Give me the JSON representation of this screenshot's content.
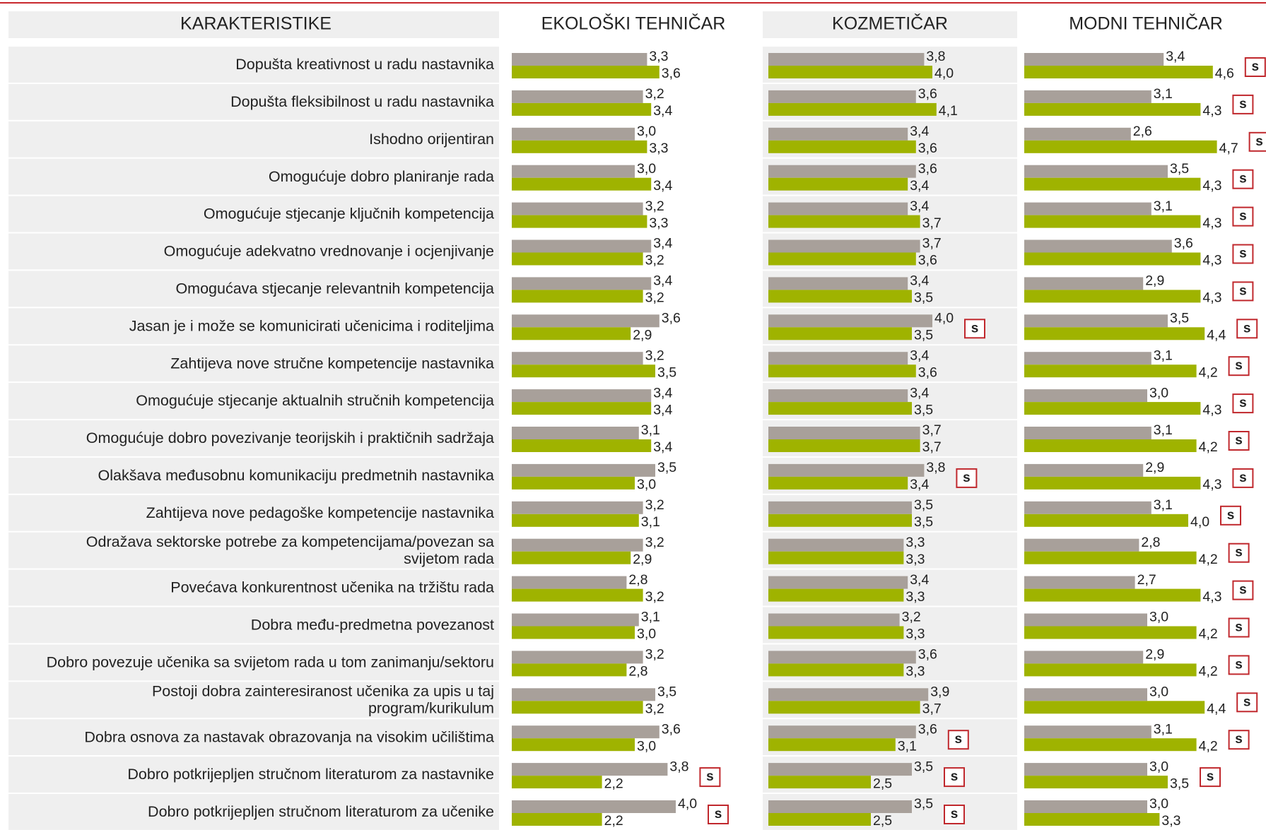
{
  "header": {
    "title": "KARAKTERISTIKE",
    "categories": [
      "Dopušta kreativnost u radu nastavnika",
      "Dopušta fleksibilnost u radu nastavnika",
      "Ishodno orijentiran",
      "Omogućuje dobro planiranje rada",
      "Omogućuje stjecanje ključnih kompetencija",
      "Omogućuje adekvatno vrednovanje i ocjenjivanje",
      "Omogućava stjecanje relevantnih kompetencija",
      "Jasan je i može se komunicirati učenicima i roditeljima",
      "Zahtijeva nove stručne kompetencije nastavnika",
      "Omogućuje stjecanje aktualnih stručnih kompetencija",
      "Omogućuje dobro povezivanje teorijskih i praktičnih sadržaja",
      "Olakšava međusobnu komunikaciju predmetnih nastavnika",
      "Zahtijeva nove pedagoške kompetencije nastavnika",
      [
        "Odražava sektorske potrebe za kompetencijama/povezan sa",
        "svijetom rada"
      ],
      "Povećava konkurentnost učenika na tržištu rada",
      "Dobra među-predmetna povezanost",
      "Dobro povezuje učenika sa svijetom rada u tom zanimanju/sektoru",
      [
        "Postoji dobra zainteresiranost učenika za upis u taj",
        "program/kurikulum"
      ],
      "Dobra osnova za nastavak obrazovanja na visokim učilištima",
      "Dobro potkrijepljen stručnom literaturom za nastavnike",
      "Dobro potkrijepljen stručnom literaturom za učenike"
    ]
  },
  "chart_data": [
    {
      "type": "hbar",
      "title": "EKOLOŠKI TEHNIČAR",
      "xlim": [
        0,
        6
      ],
      "series": [
        {
          "color": "#a8a09a",
          "values": [
            3.3,
            3.2,
            3.0,
            3.0,
            3.2,
            3.4,
            3.4,
            3.6,
            3.2,
            3.4,
            3.1,
            3.5,
            3.2,
            3.2,
            2.8,
            3.1,
            3.2,
            3.5,
            3.6,
            3.8,
            4.0
          ],
          "value_labels": [
            "3,3",
            "3,2",
            "3,0",
            "3,0",
            "3,2",
            "3,4",
            "3,4",
            "3,6",
            "3,2",
            "3,4",
            "3,1",
            "3,5",
            "3,2",
            "3,2",
            "2,8",
            "3,1",
            "3,2",
            "3,5",
            "3,6",
            "3,8",
            "4,0"
          ]
        },
        {
          "color": "#9fb300",
          "values": [
            3.6,
            3.4,
            3.3,
            3.4,
            3.3,
            3.2,
            3.2,
            2.9,
            3.5,
            3.4,
            3.4,
            3.0,
            3.1,
            2.9,
            3.2,
            3.0,
            2.8,
            3.2,
            3.0,
            2.2,
            2.2
          ],
          "value_labels": [
            "3,6",
            "3,4",
            "3,3",
            "3,4",
            "3,3",
            "3,2",
            "3,2",
            "2,9",
            "3,5",
            "3,4",
            "3,4",
            "3,0",
            "3,1",
            "2,9",
            "3,2",
            "3,0",
            "2,8",
            "3,2",
            "3,0",
            "2,2",
            "2,2"
          ]
        }
      ],
      "flags": [
        null,
        null,
        null,
        null,
        null,
        null,
        null,
        null,
        null,
        null,
        null,
        null,
        null,
        null,
        null,
        null,
        null,
        null,
        null,
        "s",
        "s"
      ]
    },
    {
      "type": "hbar",
      "title": "KOZMETIČAR",
      "xlim": [
        0,
        6
      ],
      "series": [
        {
          "color": "#a8a09a",
          "values": [
            3.8,
            3.6,
            3.4,
            3.6,
            3.4,
            3.7,
            3.4,
            4.0,
            3.4,
            3.4,
            3.7,
            3.8,
            3.5,
            3.3,
            3.4,
            3.2,
            3.6,
            3.9,
            3.6,
            3.5,
            3.5
          ],
          "value_labels": [
            "3,8",
            "3,6",
            "3,4",
            "3,6",
            "3,4",
            "3,7",
            "3,4",
            "4,0",
            "3,4",
            "3,4",
            "3,7",
            "3,8",
            "3,5",
            "3,3",
            "3,4",
            "3,2",
            "3,6",
            "3,9",
            "3,6",
            "3,5",
            "3,5"
          ]
        },
        {
          "color": "#9fb300",
          "values": [
            4.0,
            4.1,
            3.6,
            3.4,
            3.7,
            3.6,
            3.5,
            3.5,
            3.6,
            3.5,
            3.7,
            3.4,
            3.5,
            3.3,
            3.3,
            3.3,
            3.3,
            3.7,
            3.1,
            2.5,
            2.5
          ],
          "value_labels": [
            "4,0",
            "4,1",
            "3,6",
            "3,4",
            "3,7",
            "3,6",
            "3,5",
            "3,5",
            "3,6",
            "3,5",
            "3,7",
            "3,4",
            "3,5",
            "3,3",
            "3,3",
            "3,3",
            "3,3",
            "3,7",
            "3,1",
            "2,5",
            "2,5"
          ]
        }
      ],
      "flags": [
        null,
        null,
        null,
        null,
        null,
        null,
        null,
        "s",
        null,
        null,
        null,
        "s",
        null,
        null,
        null,
        null,
        null,
        null,
        "s",
        "s",
        "s"
      ]
    },
    {
      "type": "hbar",
      "title": "MODNI TEHNIČAR",
      "xlim": [
        0,
        6
      ],
      "series": [
        {
          "color": "#a8a09a",
          "values": [
            3.4,
            3.1,
            2.6,
            3.5,
            3.1,
            3.6,
            2.9,
            3.5,
            3.1,
            3.0,
            3.1,
            2.9,
            3.1,
            2.8,
            2.7,
            3.0,
            2.9,
            3.0,
            3.1,
            3.0,
            3.0
          ],
          "value_labels": [
            "3,4",
            "3,1",
            "2,6",
            "3,5",
            "3,1",
            "3,6",
            "2,9",
            "3,5",
            "3,1",
            "3,0",
            "3,1",
            "2,9",
            "3,1",
            "2,8",
            "2,7",
            "3,0",
            "2,9",
            "3,0",
            "3,1",
            "3,0",
            "3,0"
          ]
        },
        {
          "color": "#9fb300",
          "values": [
            4.6,
            4.3,
            4.7,
            4.3,
            4.3,
            4.3,
            4.3,
            4.4,
            4.2,
            4.3,
            4.2,
            4.3,
            4.0,
            4.2,
            4.3,
            4.2,
            4.2,
            4.4,
            4.2,
            3.5,
            3.3
          ],
          "value_labels": [
            "4,6",
            "4,3",
            "4,7",
            "4,3",
            "4,3",
            "4,3",
            "4,3",
            "4,4",
            "4,2",
            "4,3",
            "4,2",
            "4,3",
            "4,0",
            "4,2",
            "4,3",
            "4,2",
            "4,2",
            "4,4",
            "4,2",
            "3,5",
            "3,3"
          ]
        }
      ],
      "flags": [
        "s",
        "s",
        "s",
        "s",
        "s",
        "s",
        "s",
        "s",
        "s",
        "s",
        "s",
        "s",
        "s",
        "s",
        "s",
        "s",
        "s",
        "s",
        "s",
        "s",
        null
      ]
    }
  ]
}
